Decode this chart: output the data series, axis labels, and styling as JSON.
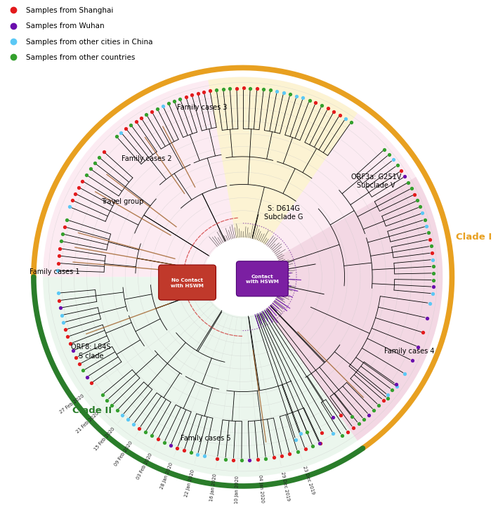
{
  "legend_items": [
    {
      "label": "Samples from Shanghai",
      "color": "#e31a1c"
    },
    {
      "label": "Samples from Wuhan",
      "color": "#6a0dad"
    },
    {
      "label": "Samples from other cities in China",
      "color": "#5bc8f5"
    },
    {
      "label": "Samples from other countries",
      "color": "#33a02c"
    }
  ],
  "clade_I_color": "#e8a020",
  "clade_II_color": "#2a7d2a",
  "clade_I_label": "Clade I",
  "clade_II_label": "Clade II",
  "bg_pink": "#fce8f0",
  "bg_green": "#eaf5ea",
  "bg_yellow": "#fdf8e8",
  "bg_pink2": "#f5dde8",
  "no_contact_color": "#c0392b",
  "contact_color": "#7b1fa2",
  "date_labels": [
    "23 Dec 2019",
    "29 Dec 2019",
    "04 Jan 2020",
    "10 Jan 2020",
    "16 Jan 2020",
    "22 Jan 2020",
    "28 Jan 2020",
    "03 Feb 2020",
    "09 Feb 2020",
    "15 Feb 2020",
    "21 Feb 2020",
    "27 Feb 2020"
  ],
  "fig_width": 6.85,
  "fig_height": 6.91
}
